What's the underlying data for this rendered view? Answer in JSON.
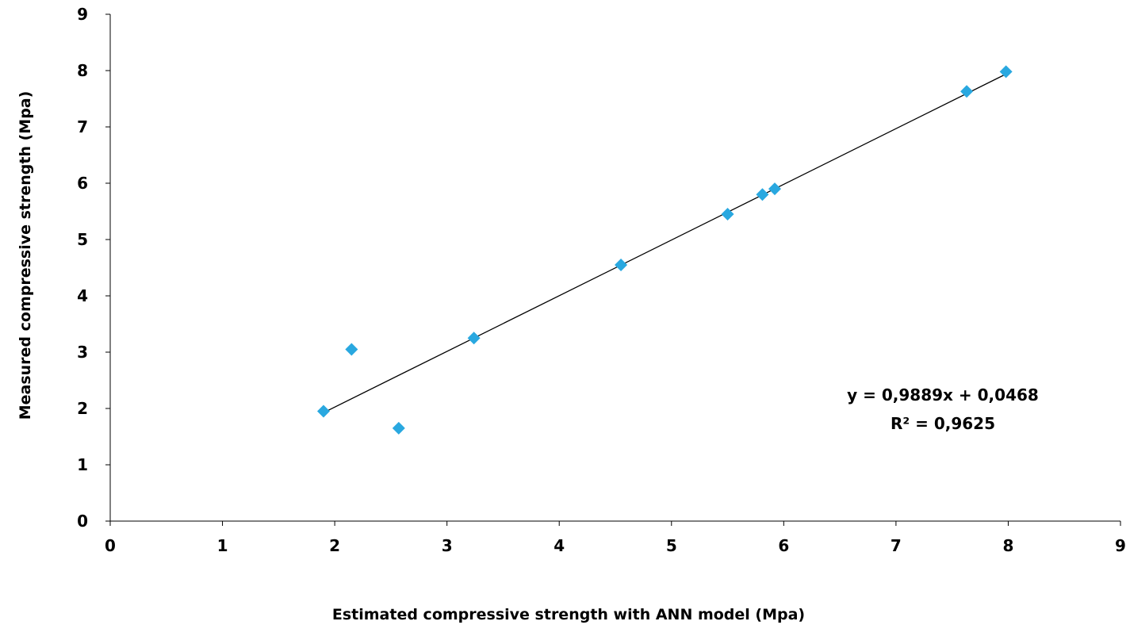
{
  "chart_data": {
    "type": "scatter",
    "title": "",
    "xlabel": "Estimated compressive strength  with ANN model (Mpa)",
    "ylabel": "Measured compressive strength (Mpa)",
    "xlim": [
      0,
      9
    ],
    "ylim": [
      0,
      9
    ],
    "xticks": [
      "0",
      "1",
      "2",
      "3",
      "4",
      "5",
      "6",
      "7",
      "8",
      "9"
    ],
    "yticks": [
      "0",
      "1",
      "2",
      "3",
      "4",
      "5",
      "6",
      "7",
      "8",
      "9"
    ],
    "grid": false,
    "legend": "none",
    "marker": "diamond",
    "marker_color": "#29A8E0",
    "series": [
      {
        "points": [
          {
            "x": 1.9,
            "y": 1.95
          },
          {
            "x": 2.15,
            "y": 3.05
          },
          {
            "x": 2.57,
            "y": 1.65
          },
          {
            "x": 3.24,
            "y": 3.25
          },
          {
            "x": 4.55,
            "y": 4.55
          },
          {
            "x": 5.5,
            "y": 5.45
          },
          {
            "x": 5.81,
            "y": 5.8
          },
          {
            "x": 5.92,
            "y": 5.9
          },
          {
            "x": 7.63,
            "y": 7.63
          },
          {
            "x": 7.98,
            "y": 7.98
          }
        ]
      }
    ],
    "trendline": {
      "slope": 0.9889,
      "intercept": 0.0468,
      "x_range": [
        1.9,
        7.98
      ],
      "color": "#000000",
      "equation_text": "y = 0,9889x + 0,0468",
      "r2_text": "R² = 0,9625"
    }
  }
}
